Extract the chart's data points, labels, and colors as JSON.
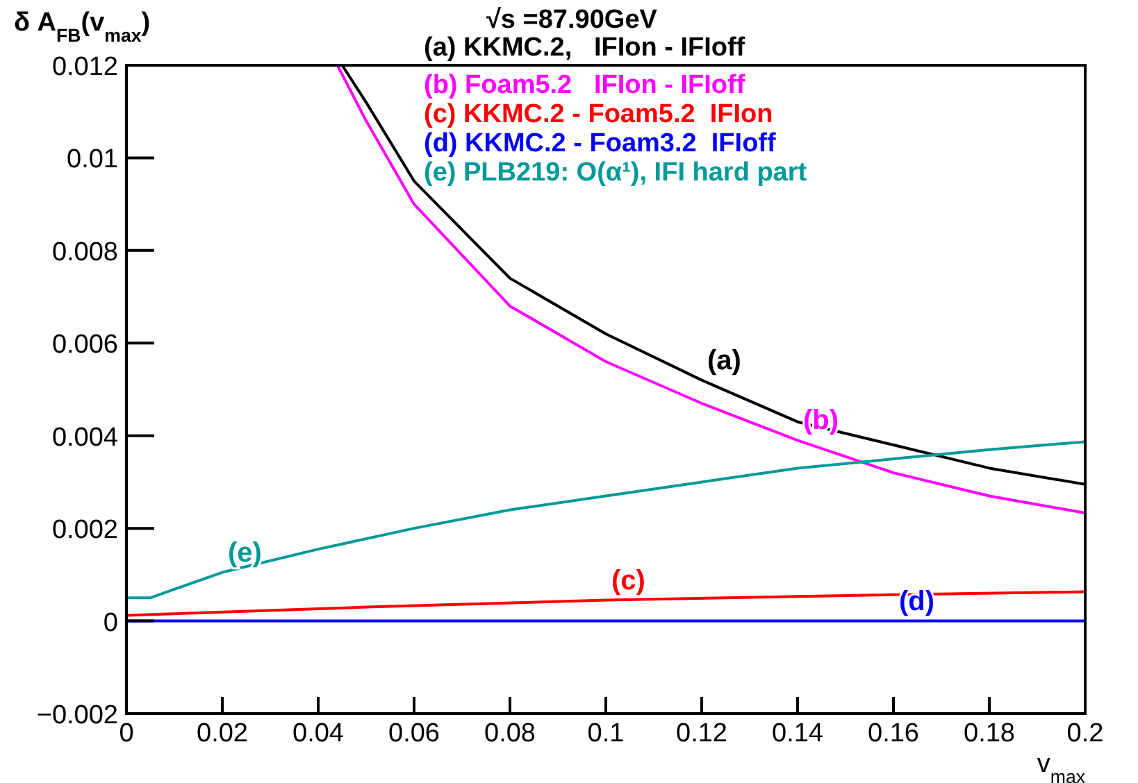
{
  "chart_data": {
    "type": "line",
    "title": "√s =87.90GeV",
    "xlabel": "v$_{max}$",
    "ylabel": "δ A$_{FB}$(v$_{max}$)",
    "xlim": [
      0,
      0.2
    ],
    "xticks": [
      0,
      0.02,
      0.04,
      0.06,
      0.08,
      0.1,
      0.12,
      0.14,
      0.16,
      0.18,
      0.2
    ],
    "ylim": [
      -0.002,
      0.012
    ],
    "yticks": [
      {
        "value": -0.002,
        "label": "−0.002"
      },
      0,
      0.002,
      0.004,
      0.006,
      0.008,
      0.01,
      0.012
    ],
    "grid": false,
    "legend": "top right",
    "marker": "none",
    "line_style": "solid",
    "series": [
      {
        "name": "(a) KKMC.2,   IFIon - IFIoff",
        "color": "#000000",
        "x": [
          0.045,
          0.05,
          0.06,
          0.08,
          0.1,
          0.12,
          0.14,
          0.16,
          0.18,
          0.2
        ],
        "values": [
          0.012,
          0.0112,
          0.0095,
          0.0074,
          0.0062,
          0.0052,
          0.0043,
          0.0038,
          0.0033,
          0.00295
        ]
      },
      {
        "name": "(b) Foam5.2   IFIon - IFIoff",
        "color": "#ff00ff",
        "x": [
          0.044,
          0.05,
          0.06,
          0.08,
          0.1,
          0.12,
          0.14,
          0.16,
          0.18,
          0.2
        ],
        "values": [
          0.012,
          0.0108,
          0.009,
          0.0068,
          0.0056,
          0.0047,
          0.0039,
          0.0032,
          0.0027,
          0.00233
        ]
      },
      {
        "name": "(c) KKMC.2 - Foam5.2  IFIon",
        "color": "#ff0000",
        "x": [
          0,
          0.05,
          0.1,
          0.15,
          0.2
        ],
        "values": [
          0.00012,
          0.0003,
          0.00045,
          0.00055,
          0.00063
        ]
      },
      {
        "name": "(d) KKMC.2 - Foam3.2  IFIoff",
        "color": "#0000ff",
        "x": [
          0,
          0.2
        ],
        "values": [
          0,
          0
        ]
      },
      {
        "name": "(e) PLB219: O(α¹), IFI hard part",
        "color": "#009999",
        "x": [
          0,
          0.005,
          0.02,
          0.04,
          0.06,
          0.08,
          0.1,
          0.12,
          0.14,
          0.16,
          0.18,
          0.2
        ],
        "values": [
          0.0005,
          0.0005,
          0.00105,
          0.00155,
          0.002,
          0.0024,
          0.0027,
          0.003,
          0.0033,
          0.0035,
          0.0037,
          0.00387
        ]
      }
    ],
    "annotations": [
      {
        "text": "(a)",
        "x": 0.12,
        "y": 0.0052
      },
      {
        "text": "(b)",
        "x": 0.14,
        "y": 0.0039
      },
      {
        "text": "(c)",
        "x": 0.1,
        "y": 0.00045
      },
      {
        "text": "(d)",
        "x": 0.16,
        "y": 0
      },
      {
        "text": "(e)",
        "x": 0.02,
        "y": 0.00105
      }
    ]
  }
}
